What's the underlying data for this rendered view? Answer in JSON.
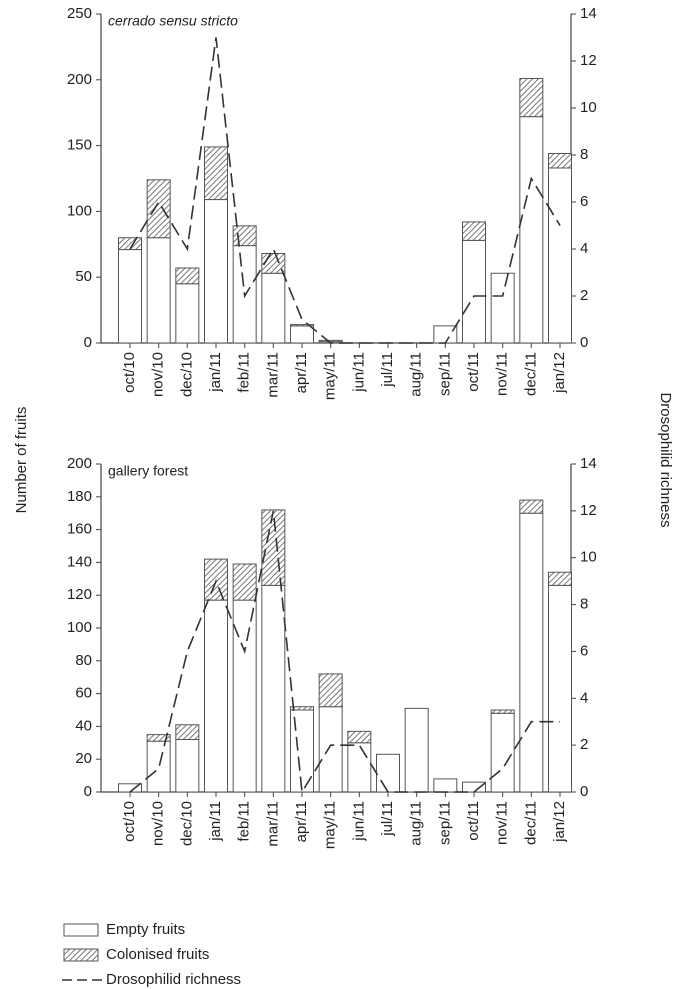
{
  "chart_data": [
    {
      "type": "bar",
      "stacked": true,
      "title": "cerrado sensu stricto",
      "title_italic": true,
      "y_label": "Number of fruits",
      "y2_label": "Drosophilid richness",
      "legend": "bottom",
      "categories": [
        "oct/10",
        "nov/10",
        "dec/10",
        "jan/11",
        "feb/11",
        "mar/11",
        "apr/11",
        "may/11",
        "jun/11",
        "jul/11",
        "aug/11",
        "sep/11",
        "oct/11",
        "nov/11",
        "dec/11",
        "jan/12"
      ],
      "series": [
        {
          "name": "Empty fruits",
          "color": "#ffffff",
          "values": [
            71,
            80,
            45,
            109,
            74,
            53,
            13,
            1,
            0,
            0,
            0,
            13,
            78,
            53,
            172,
            133
          ]
        },
        {
          "name": "Colonised fruits",
          "color": "#555555",
          "hatch": true,
          "values": [
            9,
            44,
            12,
            40,
            15,
            15,
            1,
            1,
            0,
            0,
            0,
            0,
            14,
            0,
            29,
            11
          ]
        },
        {
          "name": "Drosophilid richness",
          "type": "line",
          "axis": "y2",
          "color": "#333333",
          "dashed": true,
          "values": [
            4,
            6,
            4,
            13,
            2,
            4,
            1,
            0,
            0,
            0,
            0,
            0,
            2,
            2,
            7,
            5
          ]
        }
      ],
      "ylim": [
        0,
        250
      ],
      "yticks": [
        0,
        50,
        100,
        150,
        200,
        250
      ],
      "y2lim": [
        0,
        14
      ],
      "y2ticks": [
        0,
        2,
        4,
        6,
        8,
        10,
        12,
        14
      ]
    },
    {
      "type": "bar",
      "stacked": true,
      "title": "gallery forest",
      "title_italic": false,
      "categories": [
        "oct/10",
        "nov/10",
        "dec/10",
        "jan/11",
        "feb/11",
        "mar/11",
        "apr/11",
        "may/11",
        "jun/11",
        "jul/11",
        "aug/11",
        "sep/11",
        "oct/11",
        "nov/11",
        "dec/11",
        "jan/12"
      ],
      "series": [
        {
          "name": "Empty fruits",
          "color": "#ffffff",
          "values": [
            5,
            31,
            32,
            117,
            117,
            126,
            50,
            52,
            30,
            23,
            51,
            8,
            6,
            48,
            170,
            126
          ]
        },
        {
          "name": "Colonised fruits",
          "color": "#555555",
          "hatch": true,
          "values": [
            0,
            4,
            9,
            25,
            22,
            46,
            2,
            20,
            7,
            0,
            0,
            0,
            0,
            2,
            8,
            8
          ]
        },
        {
          "name": "Drosophilid richness",
          "type": "line",
          "axis": "y2",
          "color": "#333333",
          "dashed": true,
          "values": [
            0,
            1,
            6,
            9,
            6,
            12,
            0,
            2,
            2,
            0,
            0,
            0,
            0,
            1,
            3,
            3
          ]
        }
      ],
      "ylim": [
        0,
        200
      ],
      "yticks": [
        0,
        20,
        40,
        60,
        80,
        100,
        120,
        140,
        160,
        180,
        200
      ],
      "y2lim": [
        0,
        14
      ],
      "y2ticks": [
        0,
        2,
        4,
        6,
        8,
        10,
        12,
        14
      ]
    }
  ]
}
